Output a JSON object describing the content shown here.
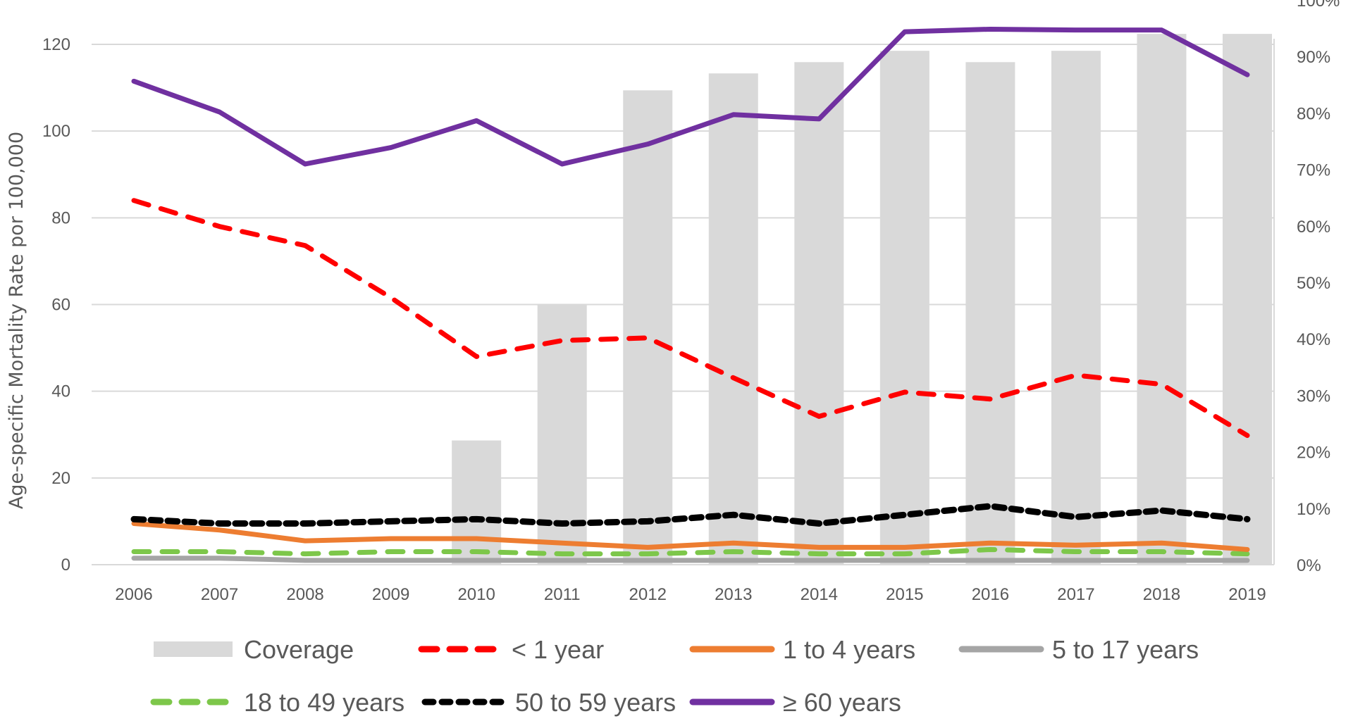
{
  "chart_data": {
    "type": "bar+line",
    "title": "",
    "xlabel": "",
    "ylabel": "Age-specific Mortality Rate por 100,000",
    "ylim": [
      0,
      120
    ],
    "y2lim": [
      0,
      100
    ],
    "yticks": [
      "0",
      "20",
      "40",
      "60",
      "80",
      "100",
      "120"
    ],
    "y2ticks": [
      "0%",
      "10%",
      "20%",
      "30%",
      "40%",
      "50%",
      "60%",
      "70%",
      "80%",
      "90%",
      "100%"
    ],
    "grid": true,
    "legend_position": "bottom",
    "categories": [
      "2006",
      "2007",
      "2008",
      "2009",
      "2010",
      "2011",
      "2012",
      "2013",
      "2014",
      "2015",
      "2016",
      "2017",
      "2018",
      "2019"
    ],
    "bars": {
      "name": "Coverage",
      "axis": "right",
      "unit": "%",
      "color": "#d9d9d9",
      "values": [
        null,
        null,
        null,
        null,
        22,
        46,
        84,
        87,
        89,
        91,
        89,
        91,
        94,
        94
      ]
    },
    "series": [
      {
        "name": "< 1 year",
        "color": "#ff0000",
        "style": "dashed",
        "values": [
          84,
          78,
          73.6,
          61.6,
          48,
          51.7,
          52.3,
          43.1,
          34.2,
          39.8,
          38.2,
          43.7,
          41.6,
          29.8
        ]
      },
      {
        "name": "1 to 4 years",
        "color": "#ed7d31",
        "style": "solid",
        "values": [
          9.5,
          8,
          5.5,
          6,
          6,
          5,
          4,
          5,
          4,
          4,
          5,
          4.5,
          5,
          3.5
        ]
      },
      {
        "name": "5 to 17 years",
        "color": "#a5a5a5",
        "style": "solid",
        "values": [
          1.5,
          1.5,
          1,
          1,
          1,
          1,
          1,
          1,
          1,
          1,
          1,
          1,
          1,
          1
        ]
      },
      {
        "name": "18 to 49 years",
        "color": "#7dc74a",
        "style": "dashed",
        "values": [
          3,
          3,
          2.5,
          3,
          3,
          2.5,
          2.5,
          3,
          2.5,
          2.5,
          3.5,
          3,
          3,
          2.5
        ]
      },
      {
        "name": "50 to 59 years",
        "color": "#000000",
        "style": "dotted",
        "values": [
          10.5,
          9.5,
          9.5,
          10,
          10.5,
          9.5,
          10,
          11.5,
          9.5,
          11.5,
          13.5,
          11,
          12.5,
          10.5
        ]
      },
      {
        "name": "≥ 60 years",
        "color": "#7030a0",
        "style": "solid",
        "values": [
          111.5,
          104.4,
          92.4,
          96.2,
          102.4,
          92.4,
          97,
          103.8,
          102.8,
          122.9,
          123.5,
          123.3,
          123.3,
          113
        ]
      }
    ]
  }
}
